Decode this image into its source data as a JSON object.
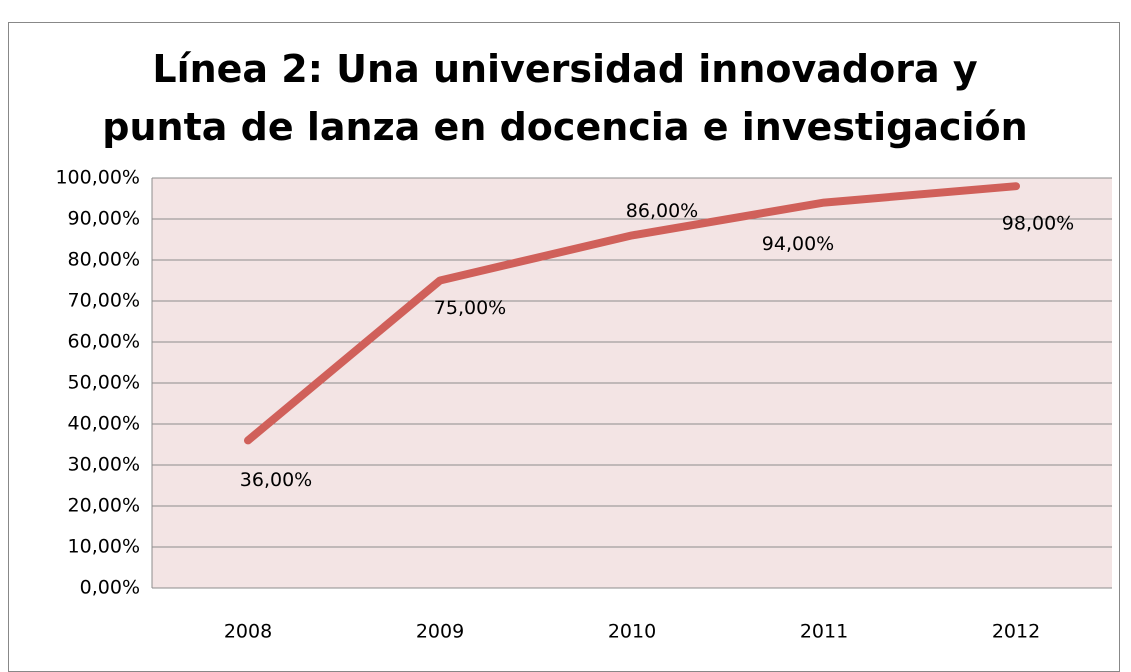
{
  "chart_data": {
    "type": "line",
    "title": "Línea 2: Una universidad innovadora y punta de lanza en docencia e investigación",
    "categories": [
      "2008",
      "2009",
      "2010",
      "2011",
      "2012"
    ],
    "values": [
      36,
      75,
      86,
      94,
      98
    ],
    "value_labels": [
      "36,00%",
      "75,00%",
      "86,00%",
      "94,00%",
      "98,00%"
    ],
    "color": "#d0605a",
    "ylim": [
      0,
      100
    ],
    "yticks": [
      {
        "value": 0,
        "label": "0,00%"
      },
      {
        "value": 10,
        "label": "10,00%"
      },
      {
        "value": 20,
        "label": "20,00%"
      },
      {
        "value": 30,
        "label": "30,00%"
      },
      {
        "value": 40,
        "label": "40,00%"
      },
      {
        "value": 50,
        "label": "50,00%"
      },
      {
        "value": 60,
        "label": "60,00%"
      },
      {
        "value": 70,
        "label": "70,00%"
      },
      {
        "value": 80,
        "label": "80,00%"
      },
      {
        "value": 90,
        "label": "90,00%"
      },
      {
        "value": 100,
        "label": "100,00%"
      }
    ],
    "grid": true
  }
}
